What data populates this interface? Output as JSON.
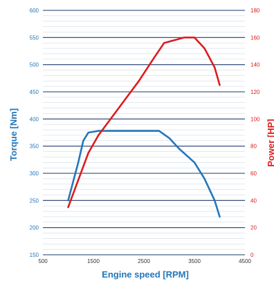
{
  "chart_data": {
    "type": "line",
    "title": "",
    "xlabel": "Engine speed [RPM]",
    "ylabel_left": "Torque [Nm]",
    "ylabel_right": "Power [HP]",
    "xlim": [
      500,
      4500
    ],
    "ylim_left": [
      150,
      600
    ],
    "ylim_right": [
      0,
      180
    ],
    "x_ticks": [
      "500",
      "1500",
      "2500",
      "3500",
      "4500"
    ],
    "y_ticks_left": [
      "150",
      "200",
      "250",
      "300",
      "350",
      "400",
      "450",
      "500",
      "550",
      "600"
    ],
    "y_ticks_right": [
      "0",
      "20",
      "40",
      "60",
      "80",
      "100",
      "120",
      "140",
      "160",
      "180"
    ],
    "grid": true,
    "colors": {
      "torque": "#2277bb",
      "power": "#dd1b1b",
      "major_grid": "#1b3a6b",
      "minor_grid": "#9fb6cf"
    },
    "series": [
      {
        "axis": "left",
        "color": "#2277bb",
        "x": [
          1000,
          1200,
          1300,
          1400,
          1600,
          2000,
          2400,
          2800,
          3000,
          3200,
          3500,
          3700,
          3900,
          4000
        ],
        "y": [
          250,
          320,
          360,
          375,
          378,
          378,
          378,
          378,
          365,
          345,
          320,
          290,
          250,
          220
        ]
      },
      {
        "axis": "right",
        "color": "#dd1b1b",
        "x": [
          1000,
          1200,
          1400,
          1600,
          2000,
          2400,
          2700,
          2900,
          3100,
          3300,
          3500,
          3700,
          3800,
          3900,
          4000
        ],
        "y": [
          35,
          55,
          75,
          88,
          108,
          128,
          145,
          156,
          158,
          160,
          160,
          152,
          145,
          138,
          125
        ]
      }
    ]
  }
}
